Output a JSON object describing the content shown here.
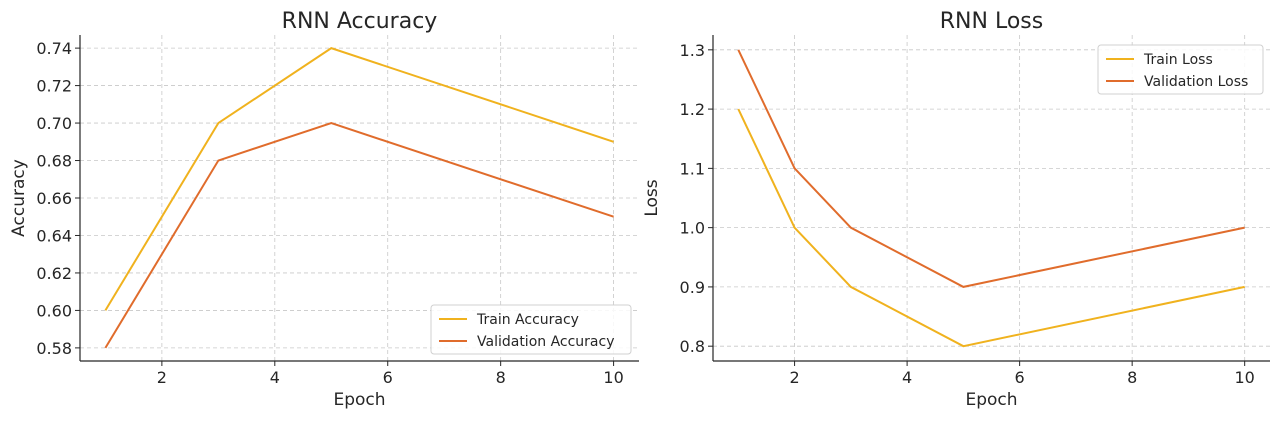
{
  "chart_data": [
    {
      "type": "line",
      "title": "RNN Accuracy",
      "xlabel": "Epoch",
      "ylabel": "Accuracy",
      "xlim": [
        0.55,
        10.45
      ],
      "ylim": [
        0.573,
        0.747
      ],
      "xticks": [
        2,
        4,
        6,
        8,
        10
      ],
      "yticks": [
        0.58,
        0.6,
        0.62,
        0.64,
        0.66,
        0.68,
        0.7,
        0.72,
        0.74
      ],
      "ytick_labels": [
        "0.58",
        "0.60",
        "0.62",
        "0.64",
        "0.66",
        "0.68",
        "0.70",
        "0.72",
        "0.74"
      ],
      "grid": true,
      "legend_position": "bottom-right",
      "series": [
        {
          "name": "Train Accuracy",
          "color": "#f0b21e",
          "x": [
            1,
            3,
            5,
            10
          ],
          "y": [
            0.6,
            0.7,
            0.74,
            0.69
          ]
        },
        {
          "name": "Validation Accuracy",
          "color": "#e06c2c",
          "x": [
            1,
            3,
            5,
            10
          ],
          "y": [
            0.58,
            0.68,
            0.7,
            0.65
          ]
        }
      ]
    },
    {
      "type": "line",
      "title": "RNN Loss",
      "xlabel": "Epoch",
      "ylabel": "Loss",
      "xlim": [
        0.55,
        10.45
      ],
      "ylim": [
        0.775,
        1.325
      ],
      "xticks": [
        2,
        4,
        6,
        8,
        10
      ],
      "yticks": [
        0.8,
        0.9,
        1.0,
        1.1,
        1.2,
        1.3
      ],
      "ytick_labels": [
        "0.8",
        "0.9",
        "1.0",
        "1.1",
        "1.2",
        "1.3"
      ],
      "grid": true,
      "legend_position": "top-right",
      "series": [
        {
          "name": "Train Loss",
          "color": "#f0b21e",
          "x": [
            1,
            2,
            3,
            5,
            10
          ],
          "y": [
            1.2,
            1.0,
            0.9,
            0.8,
            0.9
          ]
        },
        {
          "name": "Validation Loss",
          "color": "#e06c2c",
          "x": [
            1,
            2,
            3,
            5,
            10
          ],
          "y": [
            1.3,
            1.1,
            1.0,
            0.9,
            1.0
          ]
        }
      ]
    }
  ]
}
